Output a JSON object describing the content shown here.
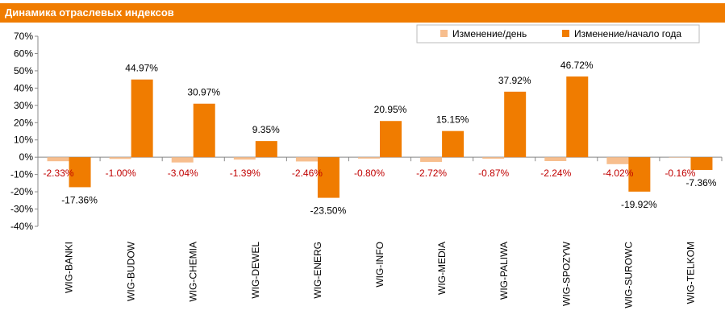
{
  "title": "Динамика отраслевых индексов",
  "colors": {
    "header": "#F07C00",
    "series_day": "#F7BE8E",
    "series_year": "#F07C00",
    "label_day": "#C00000",
    "label_year": "#000000"
  },
  "chart_data": {
    "type": "bar",
    "categories": [
      "WIG-BANKI",
      "WIG-BUDOW",
      "WIG-CHEMIA",
      "WIG-DEWEL",
      "WIG-ENERG",
      "WIG-INFO",
      "WIG-MEDIA",
      "WIG-PALIWA",
      "WIG-SPOZYW",
      "WIG-SUROWC",
      "WIG-TELKOM"
    ],
    "series": [
      {
        "name": "Изменение/день",
        "values": [
          -2.33,
          -1.0,
          -3.04,
          -1.39,
          -2.46,
          -0.8,
          -2.72,
          -0.87,
          -2.24,
          -4.02,
          -0.16
        ],
        "labels": [
          "-2.33%",
          "-1.00%",
          "-3.04%",
          "-1.39%",
          "-2.46%",
          "-0.80%",
          "-2.72%",
          "-0.87%",
          "-2.24%",
          "-4.02%",
          "-0.16%"
        ]
      },
      {
        "name": "Изменение/начало года",
        "values": [
          -17.36,
          44.97,
          30.97,
          9.35,
          -23.5,
          20.95,
          15.15,
          37.92,
          46.72,
          -19.92,
          -7.36
        ],
        "labels": [
          "-17.36%",
          "44.97%",
          "30.97%",
          "9.35%",
          "-23.50%",
          "20.95%",
          "15.15%",
          "37.92%",
          "46.72%",
          "-19.92%",
          "-7.36%"
        ]
      }
    ],
    "ylim": [
      -40,
      70
    ],
    "yticks": [
      70,
      60,
      50,
      40,
      30,
      20,
      10,
      0,
      -10,
      -20,
      -30,
      -40
    ],
    "ytick_labels": [
      "70%",
      "60%",
      "50%",
      "40%",
      "30%",
      "20%",
      "10%",
      "0%",
      "-10%",
      "-20%",
      "-30%",
      "-40%"
    ],
    "grid": false,
    "legend_position": "top-right"
  }
}
